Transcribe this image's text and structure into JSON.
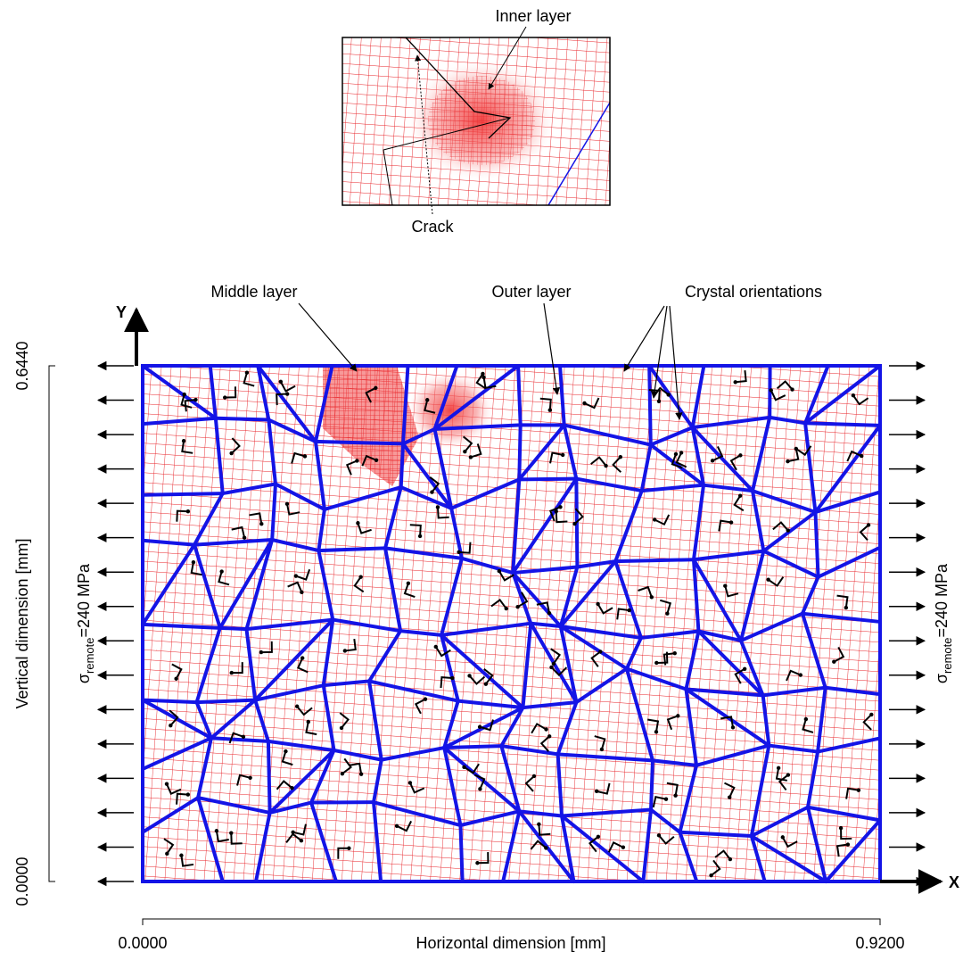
{
  "inset": {
    "inner_layer_label": "Inner layer",
    "crack_label": "Crack"
  },
  "main": {
    "middle_layer_label": "Middle layer",
    "outer_layer_label": "Outer layer",
    "crystal_orientations_label": "Crystal orientations",
    "y_axis_arrow_label": "Y",
    "x_axis_arrow_label": "X",
    "vertical_axis_title": "Vertical dimension [mm]",
    "horizontal_axis_title": "Horizontal dimension [mm]",
    "vertical_ticks": [
      "0.0000",
      "0.6440"
    ],
    "horizontal_ticks": [
      "0.0000",
      "0.9200"
    ],
    "stress_label": {
      "symbol": "σ",
      "subscript": "remote",
      "rest": "=240 MPa"
    }
  }
}
